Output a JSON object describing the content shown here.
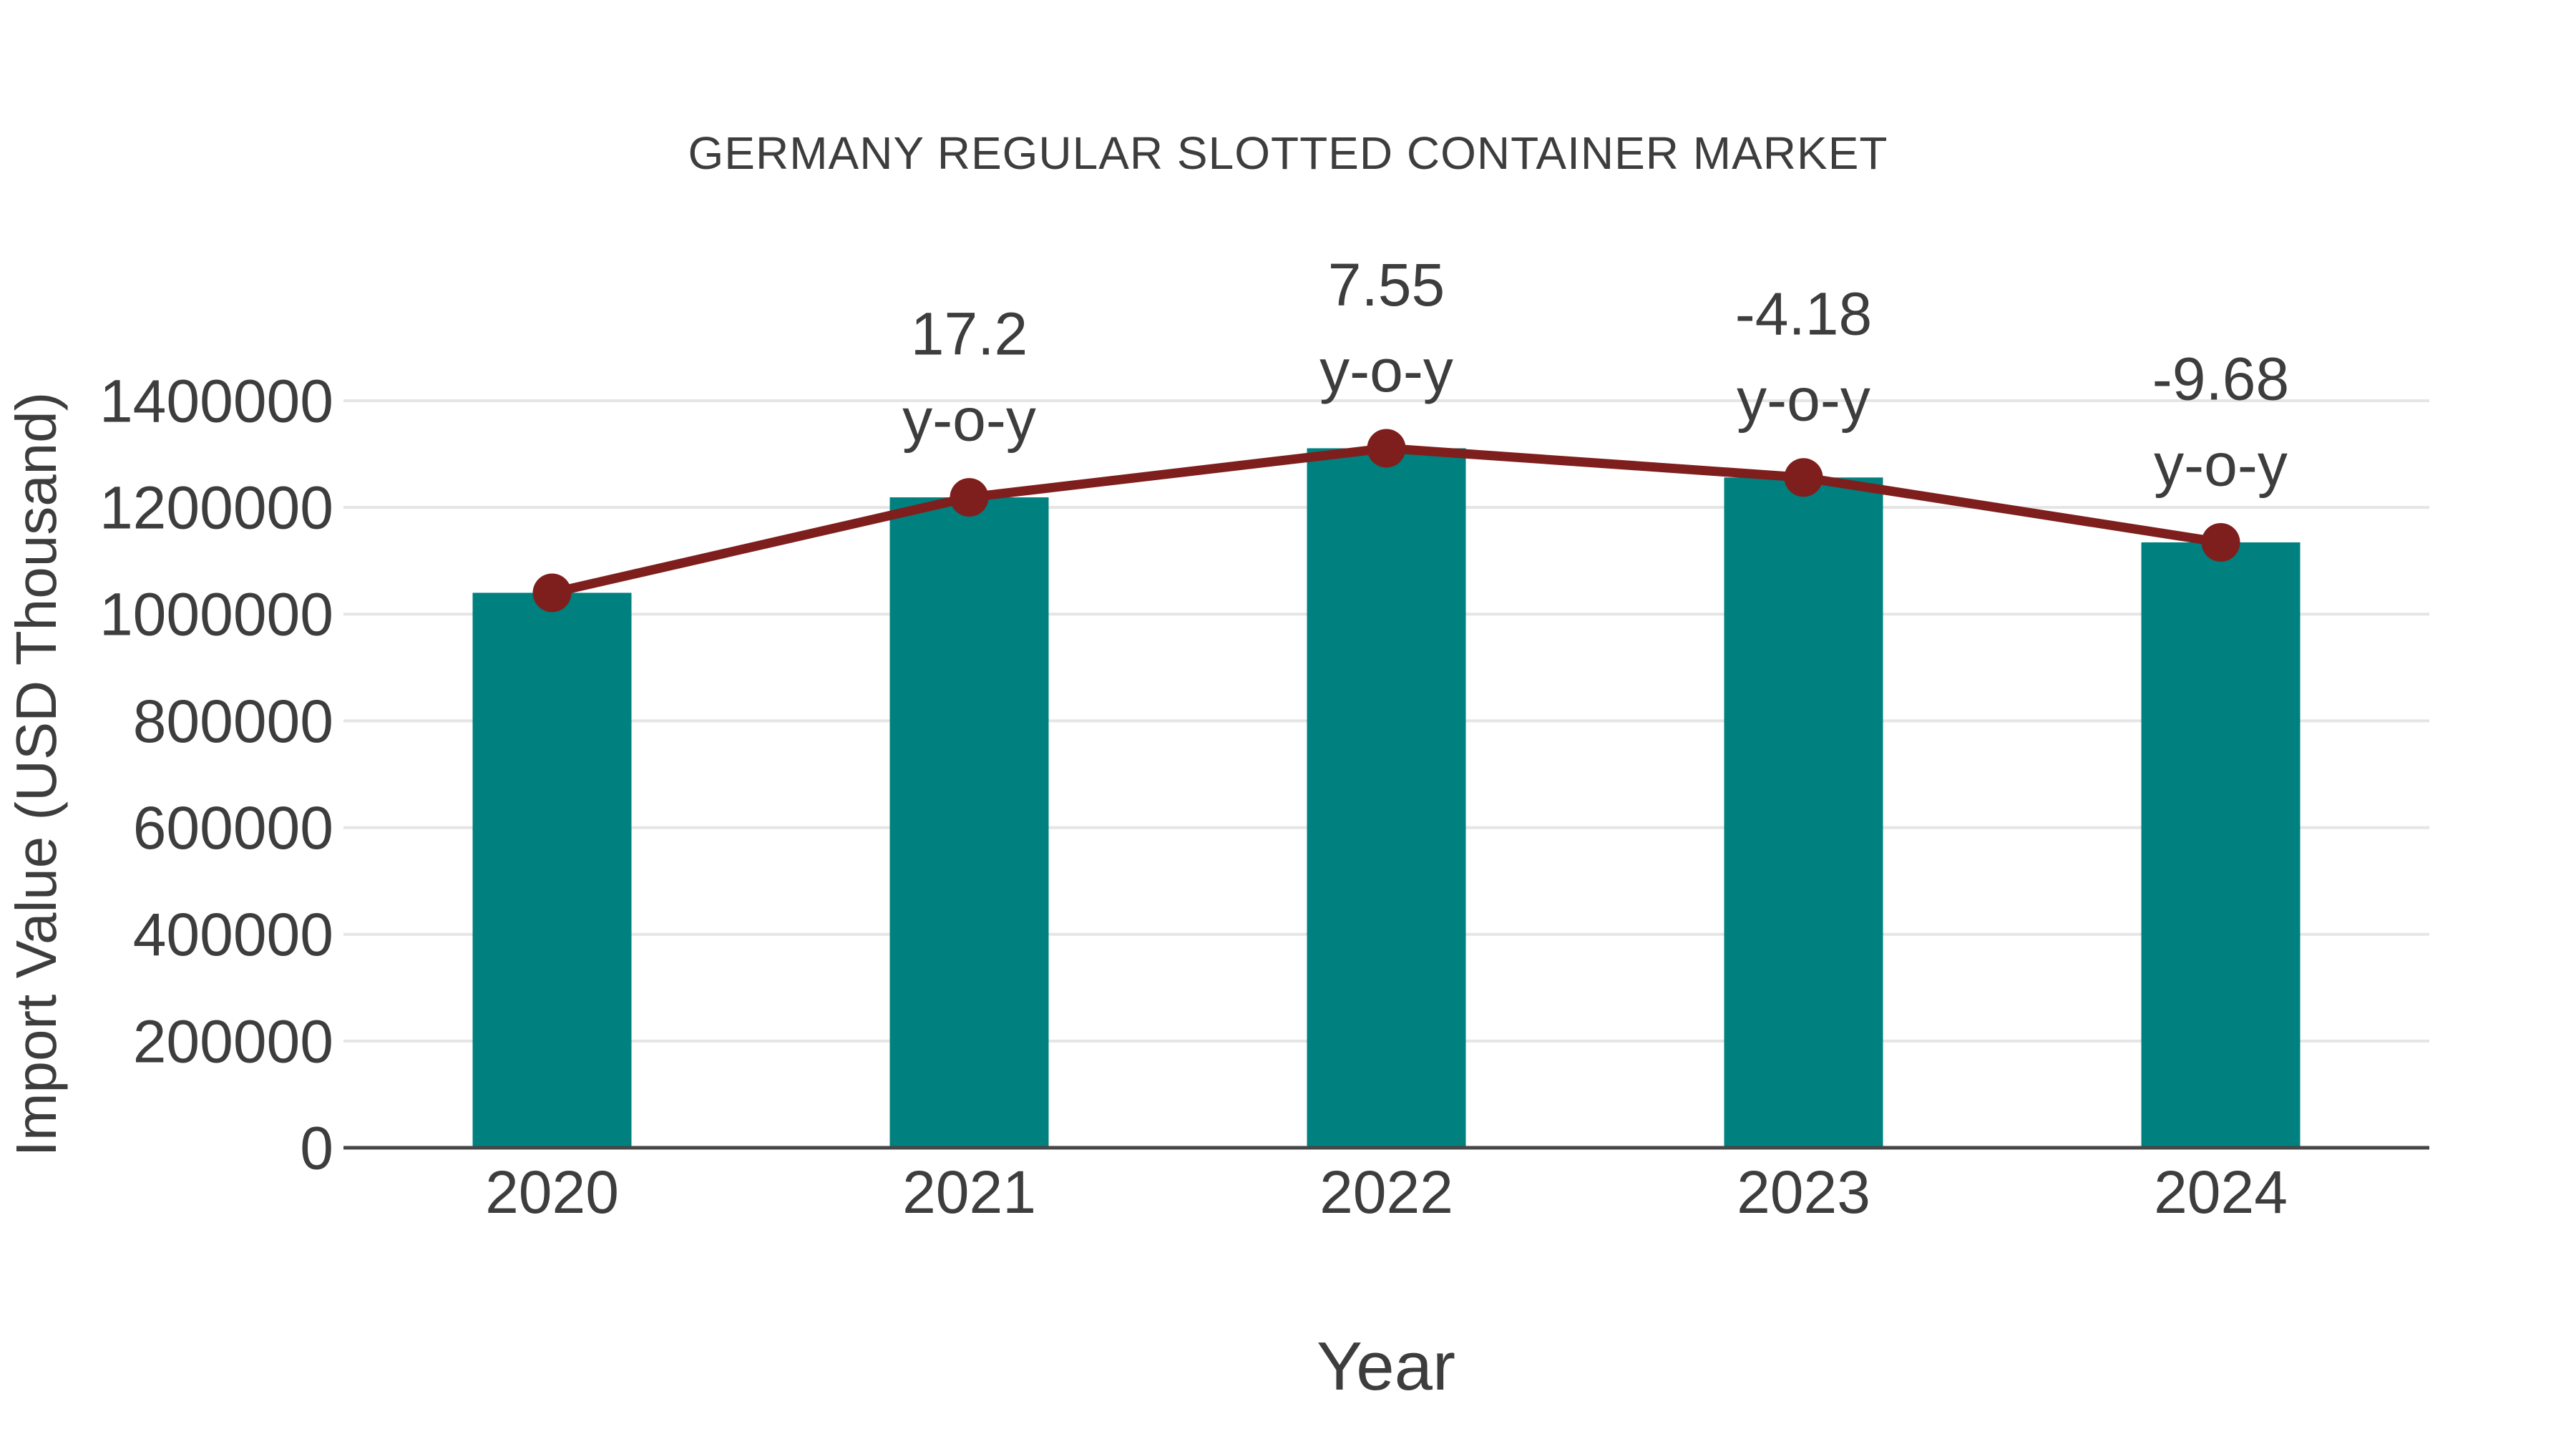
{
  "page": {
    "background": "#ffffff"
  },
  "chart_data": {
    "type": "bar",
    "title": "GERMANY REGULAR SLOTTED CONTAINER MARKET",
    "xlabel": "Year",
    "ylabel": "Import Value (USD Thousand)",
    "categories": [
      "2020",
      "2021",
      "2022",
      "2023",
      "2024"
    ],
    "series": [
      {
        "name": "Import Value bars",
        "type": "bar",
        "color": "#00807e",
        "values": [
          1040000,
          1218880,
          1310906,
          1256110,
          1134519
        ]
      },
      {
        "name": "Import Value trend line",
        "type": "line",
        "color": "#7e1f1d",
        "values": [
          1040000,
          1218880,
          1310906,
          1256110,
          1134519
        ]
      }
    ],
    "yoy_annotations": {
      "suffix": "y-o-y",
      "values": [
        null,
        "17.2",
        "7.55",
        "-4.18",
        "-9.68"
      ]
    },
    "ylim": [
      0,
      1400000
    ],
    "yticks": [
      0,
      200000,
      400000,
      600000,
      800000,
      1000000,
      1200000,
      1400000
    ],
    "grid": "horizontal",
    "legend": false,
    "colors": {
      "bar": "#00807e",
      "line": "#7e1f1d",
      "text": "#3d3d3d",
      "grid": "#e5e5e5",
      "axis": "#474747",
      "background": "#ffffff"
    }
  }
}
